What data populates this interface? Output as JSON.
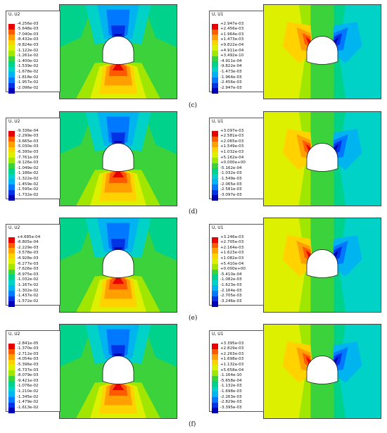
{
  "rows": [
    {
      "label": "(c)",
      "left": {
        "legend_title": "U, U2",
        "ticks": [
          "-4.256e-03",
          "-5.648e-03",
          "-7.040e-03",
          "-8.432e-03",
          "-9.824e-03",
          "-1.122e-02",
          "-1.261e-02",
          "-1.400e-02",
          "-1.539e-02",
          "-1.678e-02",
          "-1.818e-02",
          "-1.957e-02",
          "-2.096e-02"
        ]
      },
      "right": {
        "legend_title": "U, U1",
        "ticks": [
          "+2.947e-03",
          "+2.456e-03",
          "+1.964e-03",
          "+1.473e-03",
          "+9.822e-04",
          "+4.911e-04",
          "+3.492e-10",
          "-4.911e-04",
          "-9.822e-04",
          "-1.473e-03",
          "-1.964e-03",
          "-2.456e-03",
          "-2.947e-03"
        ]
      }
    },
    {
      "label": "(d)",
      "left": {
        "legend_title": "U, U2",
        "ticks": [
          "-9.336e-04",
          "-2.299e-03",
          "-3.665e-03",
          "-5.030e-03",
          "-6.395e-03",
          "-7.761e-03",
          "-9.126e-03",
          "-1.049e-02",
          "-1.186e-02",
          "-1.322e-02",
          "-1.459e-02",
          "-1.595e-02",
          "-1.732e-02"
        ]
      },
      "right": {
        "legend_title": "U, U1",
        "ticks": [
          "+3.097e-03",
          "+2.581e-03",
          "+2.065e-03",
          "+1.549e-03",
          "+1.032e-03",
          "+5.162e-04",
          "+0.000e+00",
          "-5.162e-04",
          "-1.032e-03",
          "-1.549e-03",
          "-2.065e-03",
          "-2.581e-03",
          "-3.097e-03"
        ]
      }
    },
    {
      "label": "(e)",
      "left": {
        "legend_title": "U, U2",
        "ticks": [
          "+4.685e-04",
          "-8.805e-04",
          "-2.229e-03",
          "-3.578e-03",
          "-4.928e-03",
          "-6.277e-03",
          "-7.626e-03",
          "-8.975e-03",
          "-1.032e-02",
          "-1.167e-02",
          "-1.302e-02",
          "-1.437e-02",
          "-1.572e-02"
        ]
      },
      "right": {
        "legend_title": "U, U1",
        "ticks": [
          "+3.246e-03",
          "+2.705e-03",
          "+2.164e-03",
          "+1.623e-03",
          "+1.082e-03",
          "+5.410e-04",
          "+0.000e+00",
          "-5.410e-04",
          "-1.082e-03",
          "-1.623e-03",
          "-2.164e-03",
          "-2.705e-03",
          "-3.246e-03"
        ]
      }
    },
    {
      "label": "(f)",
      "left": {
        "legend_title": "U, U2",
        "ticks": [
          "-2.841e-05",
          "-1.370e-03",
          "-2.712e-03",
          "-4.054e-03",
          "-5.396e-03",
          "-6.737e-03",
          "-8.079e-03",
          "-9.421e-03",
          "-1.076e-02",
          "-1.210e-02",
          "-1.345e-02",
          "-1.479e-02",
          "-1.613e-02"
        ]
      },
      "right": {
        "legend_title": "U, U1",
        "ticks": [
          "+3.395e-03",
          "+2.829e-03",
          "+2.263e-03",
          "+1.698e-03",
          "+1.132e-03",
          "+5.658e-04",
          "-1.164e-10",
          "-5.658e-04",
          "-1.132e-03",
          "-1.698e-03",
          "-2.263e-03",
          "-2.829e-03",
          "-3.395e-03"
        ]
      }
    }
  ],
  "colormap": [
    "#e60000",
    "#ff5a00",
    "#ffa000",
    "#ffd200",
    "#dcf000",
    "#a0e600",
    "#3cd23c",
    "#00d28c",
    "#00d2c8",
    "#00b4f0",
    "#0078ff",
    "#0032e6",
    "#0000b4"
  ]
}
